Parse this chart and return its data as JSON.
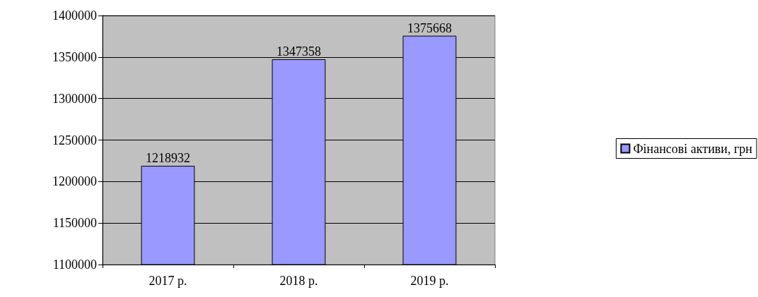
{
  "chart_data": {
    "type": "bar",
    "categories": [
      "2017 р.",
      "2018 р.",
      "2019 р."
    ],
    "series": [
      {
        "name": "Фінансові активи, грн",
        "color": "#9999ff",
        "values": [
          1218932,
          1347358,
          1375668
        ]
      }
    ],
    "ylim": [
      1100000,
      1400000
    ],
    "yticks": [
      1100000,
      1150000,
      1200000,
      1250000,
      1300000,
      1350000,
      1400000
    ],
    "grid": "y",
    "legend": "right",
    "data_labels": true
  }
}
